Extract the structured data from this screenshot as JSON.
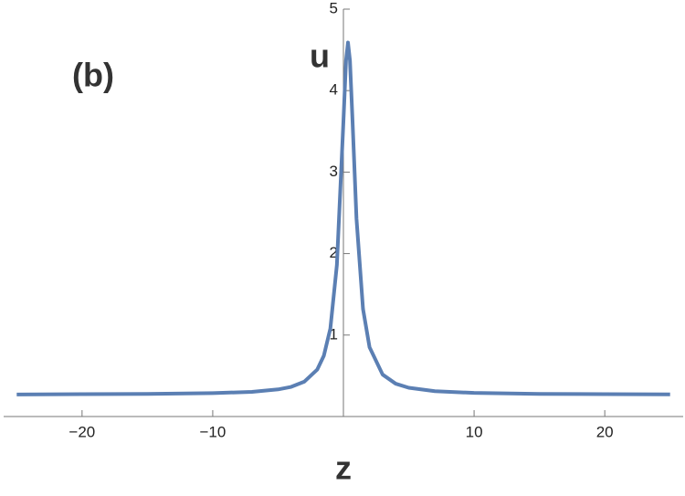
{
  "chart_data": {
    "type": "line",
    "panel_label": "(b)",
    "xlabel": "z",
    "ylabel": "u",
    "x": [
      -25,
      -20,
      -15,
      -10,
      -7,
      -5,
      -4,
      -3,
      -2,
      -1.5,
      -1,
      -0.5,
      0,
      0.2,
      0.35,
      0.5,
      0.7,
      1,
      1.5,
      2,
      3,
      4,
      5,
      7,
      10,
      15,
      20,
      25
    ],
    "series": [
      {
        "color": "#5b7fb3",
        "values": [
          0.27,
          0.274,
          0.278,
          0.287,
          0.303,
          0.333,
          0.364,
          0.427,
          0.577,
          0.745,
          1.08,
          1.86,
          3.62,
          4.37,
          4.59,
          4.37,
          3.62,
          2.43,
          1.32,
          0.85,
          0.515,
          0.403,
          0.353,
          0.311,
          0.29,
          0.278,
          0.275,
          0.272
        ]
      }
    ],
    "xlim": [
      -26,
      26
    ],
    "ylim": [
      0,
      5
    ],
    "xticks": [
      {
        "value": -20,
        "label": "−20"
      },
      {
        "value": -10,
        "label": "−10"
      },
      10,
      20
    ],
    "yticks": [
      1,
      2,
      3,
      4,
      5
    ]
  }
}
